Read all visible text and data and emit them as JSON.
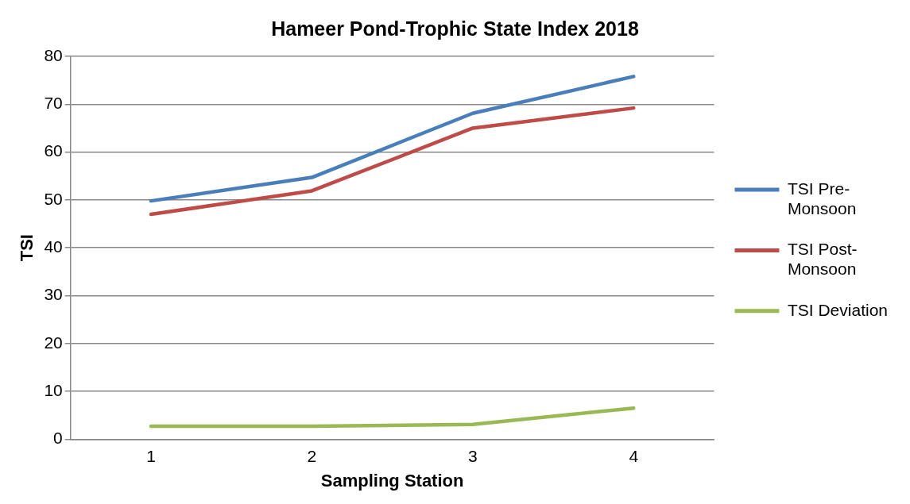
{
  "chart_data": {
    "type": "line",
    "title": "Hameer Pond-Trophic State Index 2018",
    "xlabel": "Sampling Station",
    "ylabel": "TSI",
    "categories": [
      "1",
      "2",
      "3",
      "4"
    ],
    "series": [
      {
        "name": "TSI Pre-Monsoon",
        "color": "#4a7ebb",
        "values": [
          49.8,
          54.7,
          68.1,
          75.8
        ]
      },
      {
        "name": "TSI Post-Monsoon",
        "color": "#be4b48",
        "values": [
          47.0,
          51.9,
          65.0,
          69.2
        ]
      },
      {
        "name": "TSI Deviation",
        "color": "#98b954",
        "values": [
          2.7,
          2.7,
          3.1,
          6.5
        ]
      }
    ],
    "ylim": [
      0,
      80
    ],
    "yticks": [
      0,
      10,
      20,
      30,
      40,
      50,
      60,
      70,
      80
    ],
    "grid": "y",
    "legend": "right",
    "marker": "none"
  }
}
